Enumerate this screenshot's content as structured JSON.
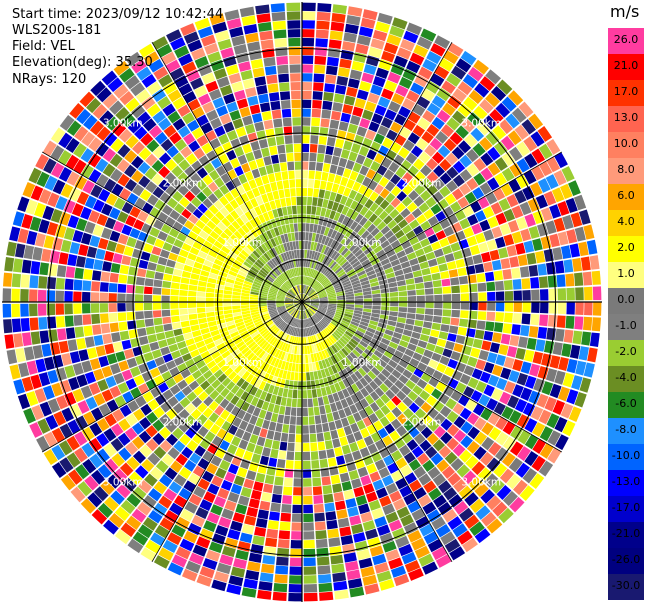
{
  "header": {
    "start_time": "Start time: 2023/09/12 10:42:44",
    "instrument": "WLS200s-181",
    "field": "Field: VEL",
    "elevation": "Elevation(deg): 35.30",
    "nrays": "NRays: 120"
  },
  "chart_data": {
    "type": "heatmap",
    "projection": "polar-ppi",
    "field": "VEL",
    "units": "m/s",
    "n_rays": 120,
    "range_rings_km": [
      1.0,
      2.0,
      3.0
    ],
    "range_ring_labels": [
      "1.00km",
      "2.00km",
      "3.00km"
    ],
    "colorbar": {
      "title": "m/s",
      "ticks": [
        "26.0",
        "21.0",
        "17.0",
        "13.0",
        "10.0",
        "8.0",
        "6.0",
        "4.0",
        "2.0",
        "1.0",
        "0.0",
        "-1.0",
        "-2.0",
        "-4.0",
        "-6.0",
        "-8.0",
        "-10.0",
        "-13.0",
        "-17.0",
        "-21.0",
        "-26.0",
        "-30.0"
      ],
      "colors": [
        "#ff3ca0",
        "#ff0000",
        "#ff3200",
        "#ff6450",
        "#ff8060",
        "#ff9a7a",
        "#ffa500",
        "#ffd200",
        "#ffff00",
        "#ffff80",
        "#7a7a7a",
        "#7f7f7f",
        "#9acd32",
        "#6b8e23",
        "#228b22",
        "#1e90ff",
        "#0064ff",
        "#0000ff",
        "#0000cd",
        "#00008b",
        "#000080",
        "#191970"
      ]
    }
  }
}
